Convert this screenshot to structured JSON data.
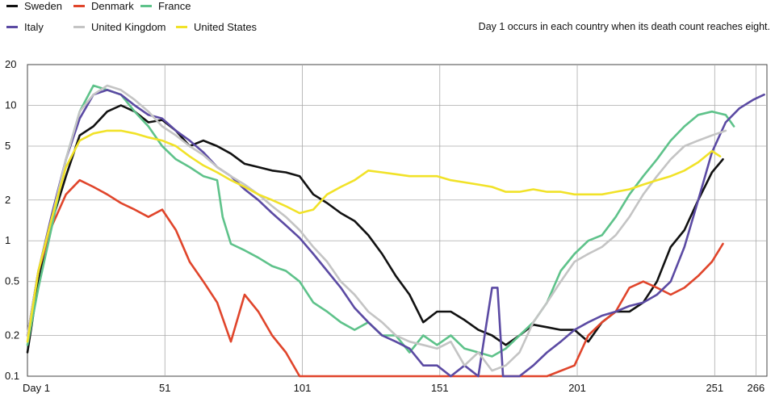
{
  "chart_data": {
    "type": "line",
    "title": "",
    "xlabel": "",
    "ylabel": "",
    "note": "Day 1 occurs in each country when its death count reaches eight.",
    "y_scale": "log",
    "ylim": [
      0.1,
      20
    ],
    "xlim": [
      1,
      270
    ],
    "x_ticks": [
      {
        "value": 1,
        "label": "Day 1"
      },
      {
        "value": 51,
        "label": "51"
      },
      {
        "value": 101,
        "label": "101"
      },
      {
        "value": 151,
        "label": "151"
      },
      {
        "value": 201,
        "label": "201"
      },
      {
        "value": 251,
        "label": "251"
      },
      {
        "value": 266,
        "label": "266"
      }
    ],
    "y_ticks": [
      {
        "value": 0.1,
        "label": "0.1"
      },
      {
        "value": 0.2,
        "label": "0.2"
      },
      {
        "value": 0.5,
        "label": "0.5"
      },
      {
        "value": 1,
        "label": "1"
      },
      {
        "value": 2,
        "label": "2"
      },
      {
        "value": 5,
        "label": "5"
      },
      {
        "value": 10,
        "label": "10"
      },
      {
        "value": 20,
        "label": "20"
      }
    ],
    "grid": true,
    "legend_position": "top-left",
    "series": [
      {
        "name": "Sweden",
        "color": "#111111",
        "x": [
          1,
          5,
          10,
          15,
          20,
          25,
          30,
          35,
          40,
          45,
          50,
          55,
          60,
          65,
          70,
          75,
          80,
          85,
          90,
          95,
          100,
          105,
          110,
          115,
          120,
          125,
          130,
          135,
          140,
          145,
          150,
          155,
          160,
          165,
          170,
          175,
          180,
          185,
          190,
          195,
          200,
          205,
          210,
          215,
          220,
          225,
          230,
          235,
          240,
          245,
          250,
          254
        ],
        "y": [
          0.15,
          0.5,
          1.4,
          3,
          6,
          7,
          9,
          10,
          9,
          7.5,
          7.8,
          6.5,
          5,
          5.5,
          5,
          4.4,
          3.7,
          3.5,
          3.3,
          3.2,
          3,
          2.2,
          1.9,
          1.6,
          1.4,
          1.1,
          0.8,
          0.55,
          0.4,
          0.25,
          0.3,
          0.3,
          0.26,
          0.22,
          0.2,
          0.17,
          0.2,
          0.24,
          0.23,
          0.22,
          0.22,
          0.18,
          0.25,
          0.3,
          0.3,
          0.35,
          0.5,
          0.9,
          1.2,
          2,
          3.2,
          4
        ]
      },
      {
        "name": "Denmark",
        "color": "#e0452b",
        "x": [
          1,
          5,
          10,
          15,
          20,
          25,
          30,
          35,
          40,
          45,
          50,
          55,
          60,
          65,
          70,
          75,
          80,
          85,
          90,
          95,
          100,
          105,
          110,
          120,
          130,
          140,
          150,
          160,
          170,
          180,
          190,
          200,
          205,
          210,
          215,
          220,
          225,
          230,
          235,
          240,
          245,
          250,
          254
        ],
        "y": [
          0.2,
          0.6,
          1.3,
          2.2,
          2.8,
          2.5,
          2.2,
          1.9,
          1.7,
          1.5,
          1.7,
          1.2,
          0.7,
          0.5,
          0.35,
          0.18,
          0.4,
          0.3,
          0.2,
          0.15,
          0.1,
          0.1,
          0.1,
          0.1,
          0.1,
          0.1,
          0.1,
          0.1,
          0.1,
          0.1,
          0.1,
          0.12,
          0.2,
          0.25,
          0.3,
          0.45,
          0.5,
          0.45,
          0.4,
          0.45,
          0.55,
          0.7,
          0.95
        ]
      },
      {
        "name": "France",
        "color": "#5ec28a",
        "x": [
          1,
          5,
          10,
          15,
          20,
          25,
          30,
          35,
          40,
          45,
          50,
          55,
          60,
          65,
          70,
          72,
          75,
          80,
          85,
          90,
          95,
          100,
          105,
          110,
          115,
          120,
          125,
          130,
          135,
          140,
          145,
          150,
          155,
          160,
          165,
          170,
          175,
          180,
          185,
          190,
          195,
          200,
          205,
          210,
          215,
          220,
          225,
          230,
          235,
          240,
          245,
          250,
          255,
          258
        ],
        "y": [
          0.17,
          0.45,
          1.3,
          4,
          9,
          14,
          13,
          12,
          9,
          7,
          5,
          4,
          3.5,
          3,
          2.8,
          1.5,
          0.95,
          0.85,
          0.75,
          0.65,
          0.6,
          0.5,
          0.35,
          0.3,
          0.25,
          0.22,
          0.25,
          0.2,
          0.2,
          0.15,
          0.2,
          0.17,
          0.2,
          0.16,
          0.15,
          0.14,
          0.16,
          0.2,
          0.25,
          0.35,
          0.6,
          0.8,
          1,
          1.1,
          1.5,
          2.2,
          3,
          4,
          5.5,
          7,
          8.5,
          9,
          8.5,
          7
        ]
      },
      {
        "name": "Italy",
        "color": "#5b4aa3",
        "x": [
          1,
          5,
          10,
          15,
          20,
          25,
          30,
          35,
          40,
          45,
          50,
          55,
          60,
          65,
          70,
          75,
          80,
          85,
          90,
          95,
          100,
          105,
          110,
          115,
          120,
          125,
          130,
          135,
          140,
          145,
          150,
          155,
          160,
          165,
          170,
          172,
          174,
          176,
          180,
          185,
          190,
          195,
          200,
          205,
          210,
          215,
          220,
          225,
          230,
          235,
          240,
          245,
          250,
          255,
          260,
          265,
          269
        ],
        "y": [
          0.2,
          0.6,
          1.6,
          4,
          8,
          12,
          13,
          12,
          10,
          8.5,
          8,
          6.5,
          5.5,
          4.5,
          3.5,
          3,
          2.4,
          2,
          1.6,
          1.3,
          1.05,
          0.8,
          0.6,
          0.45,
          0.32,
          0.25,
          0.2,
          0.18,
          0.16,
          0.12,
          0.12,
          0.1,
          0.12,
          0.1,
          0.45,
          0.45,
          0.1,
          0.1,
          0.1,
          0.12,
          0.15,
          0.18,
          0.22,
          0.25,
          0.28,
          0.3,
          0.33,
          0.35,
          0.4,
          0.5,
          0.9,
          2,
          4.5,
          7.5,
          9.5,
          11,
          12
        ]
      },
      {
        "name": "United Kingdom",
        "color": "#c4c4c4",
        "x": [
          1,
          5,
          10,
          15,
          20,
          25,
          30,
          35,
          40,
          45,
          50,
          55,
          60,
          65,
          70,
          75,
          80,
          85,
          90,
          95,
          100,
          105,
          110,
          115,
          120,
          125,
          130,
          135,
          140,
          145,
          150,
          155,
          160,
          165,
          170,
          175,
          180,
          185,
          190,
          195,
          200,
          205,
          210,
          215,
          220,
          225,
          230,
          235,
          240,
          245,
          250,
          255
        ],
        "y": [
          0.2,
          0.6,
          1.5,
          4,
          9,
          12,
          14,
          13,
          11,
          9,
          7,
          6,
          5,
          4.3,
          3.5,
          3,
          2.6,
          2.2,
          1.8,
          1.5,
          1.2,
          0.9,
          0.7,
          0.5,
          0.4,
          0.3,
          0.25,
          0.2,
          0.18,
          0.17,
          0.16,
          0.18,
          0.12,
          0.15,
          0.11,
          0.12,
          0.15,
          0.25,
          0.35,
          0.5,
          0.7,
          0.8,
          0.9,
          1.1,
          1.5,
          2.2,
          3,
          4,
          5,
          5.5,
          6,
          6.5
        ]
      },
      {
        "name": "United States",
        "color": "#f1e228",
        "x": [
          1,
          5,
          10,
          15,
          20,
          25,
          30,
          35,
          40,
          45,
          50,
          55,
          60,
          65,
          70,
          75,
          80,
          85,
          90,
          95,
          100,
          105,
          110,
          115,
          120,
          125,
          130,
          135,
          140,
          145,
          150,
          155,
          160,
          165,
          170,
          175,
          180,
          185,
          190,
          195,
          200,
          205,
          210,
          215,
          220,
          225,
          230,
          235,
          240,
          245,
          250,
          253
        ],
        "y": [
          0.18,
          0.6,
          1.5,
          3.5,
          5.5,
          6.2,
          6.5,
          6.5,
          6.2,
          5.8,
          5.5,
          5,
          4.2,
          3.6,
          3.2,
          2.8,
          2.5,
          2.2,
          2,
          1.8,
          1.6,
          1.7,
          2.2,
          2.5,
          2.8,
          3.3,
          3.2,
          3.1,
          3,
          3,
          3,
          2.8,
          2.7,
          2.6,
          2.5,
          2.3,
          2.3,
          2.4,
          2.3,
          2.3,
          2.2,
          2.2,
          2.2,
          2.3,
          2.4,
          2.6,
          2.8,
          3,
          3.3,
          3.8,
          4.6,
          4.2
        ]
      }
    ]
  }
}
